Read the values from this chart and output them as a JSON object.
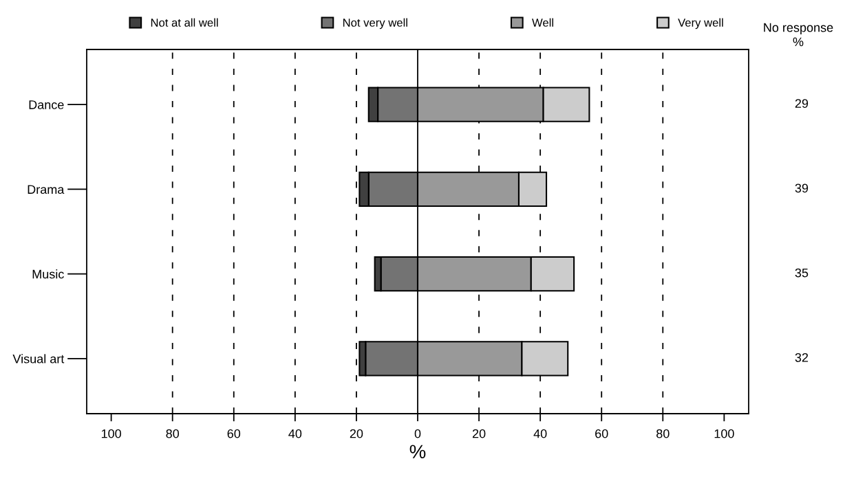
{
  "chart_data": {
    "type": "bar",
    "orientation": "horizontal",
    "stacked": true,
    "categories": [
      "Dance",
      "Drama",
      "Music",
      "Visual art"
    ],
    "series": [
      {
        "name": "Not at all well",
        "color": "#404040",
        "values": [
          -3,
          -3,
          -2,
          -2
        ]
      },
      {
        "name": "Not very well",
        "color": "#737373",
        "values": [
          -13,
          -16,
          -12,
          -17
        ]
      },
      {
        "name": "Well",
        "color": "#999999",
        "values": [
          41,
          33,
          37,
          34
        ]
      },
      {
        "name": "Very well",
        "color": "#cccccc",
        "values": [
          15,
          9,
          14,
          15
        ]
      }
    ],
    "xlabel": "%",
    "xlim": [
      -108,
      108
    ],
    "xticks": [
      {
        "value": -100,
        "label": "100"
      },
      {
        "value": -80,
        "label": "80"
      },
      {
        "value": -60,
        "label": "60"
      },
      {
        "value": -40,
        "label": "40"
      },
      {
        "value": -20,
        "label": "20"
      },
      0,
      20,
      40,
      60,
      80,
      100
    ],
    "ref_lines": [
      {
        "axis": "x",
        "value": -80,
        "line_style": "dashed"
      },
      {
        "axis": "x",
        "value": -60,
        "line_style": "dashed"
      },
      {
        "axis": "x",
        "value": -40,
        "line_style": "dashed"
      },
      {
        "axis": "x",
        "value": -20,
        "line_style": "dashed"
      },
      {
        "axis": "x",
        "value": 0,
        "line_style": "solid"
      },
      {
        "axis": "x",
        "value": 20,
        "line_style": "dashed"
      },
      {
        "axis": "x",
        "value": 40,
        "line_style": "dashed"
      },
      {
        "axis": "x",
        "value": 60,
        "line_style": "dashed"
      },
      {
        "axis": "x",
        "value": 80,
        "line_style": "dashed"
      }
    ],
    "annotations": [
      "No response\n%",
      "29",
      "39",
      "35",
      "32"
    ],
    "grid": false,
    "legend": "top"
  }
}
